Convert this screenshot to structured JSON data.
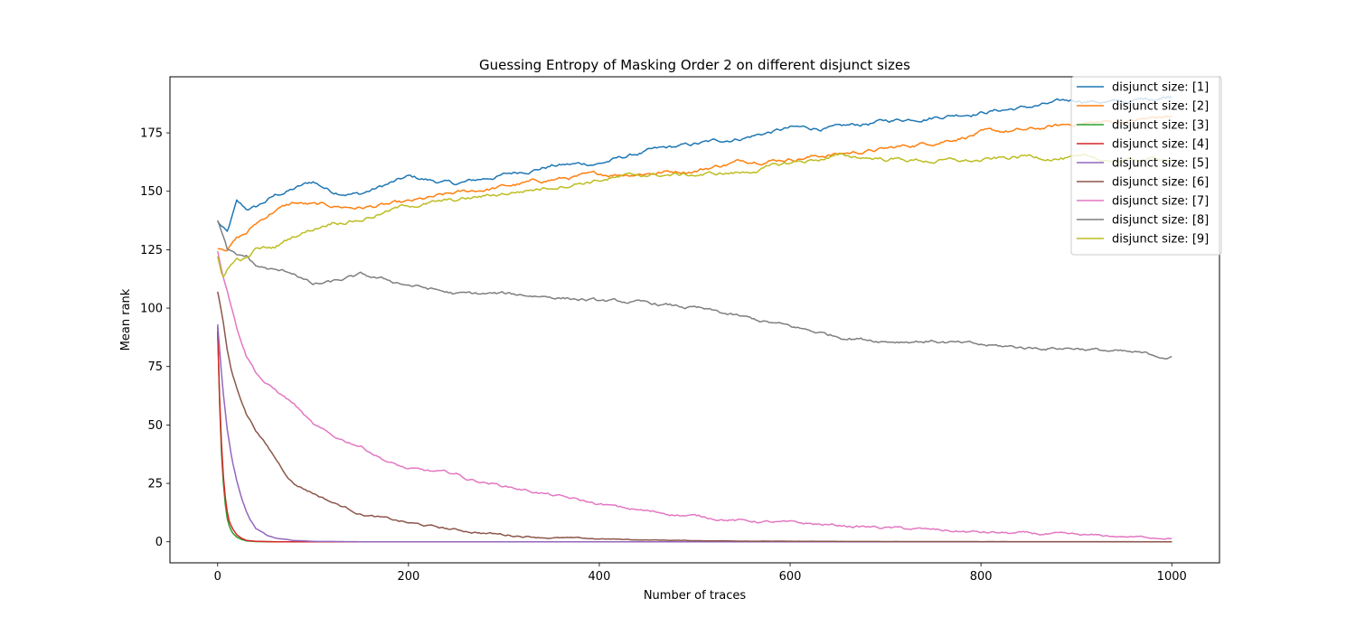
{
  "chart_data": {
    "type": "line",
    "title": "Guessing Entropy of Masking Order 2 on different disjunct sizes",
    "xlabel": "Number of traces",
    "ylabel": "Mean rank",
    "xlim": [
      -50,
      1050
    ],
    "ylim": [
      -9,
      199
    ],
    "x_ticks": [
      0,
      200,
      400,
      600,
      800,
      1000
    ],
    "y_ticks": [
      0,
      25,
      50,
      75,
      100,
      125,
      150,
      175
    ],
    "legend_position": "top-right",
    "grid": false,
    "series": [
      {
        "name": "disjunct size: [1]",
        "color": "#1f77b4",
        "points": [
          [
            0,
            137
          ],
          [
            10,
            132
          ],
          [
            20,
            145
          ],
          [
            30,
            142
          ],
          [
            40,
            143
          ],
          [
            60,
            148
          ],
          [
            80,
            151
          ],
          [
            100,
            154
          ],
          [
            120,
            150
          ],
          [
            150,
            149
          ],
          [
            200,
            156
          ],
          [
            250,
            153
          ],
          [
            300,
            157
          ],
          [
            350,
            161
          ],
          [
            400,
            162
          ],
          [
            450,
            167
          ],
          [
            500,
            170
          ],
          [
            550,
            173
          ],
          [
            600,
            177
          ],
          [
            650,
            177
          ],
          [
            700,
            180
          ],
          [
            750,
            182
          ],
          [
            800,
            184
          ],
          [
            850,
            186
          ],
          [
            900,
            189
          ],
          [
            950,
            188
          ],
          [
            1000,
            191
          ]
        ],
        "noise": 1.2
      },
      {
        "name": "disjunct size: [2]",
        "color": "#ff7f0e",
        "points": [
          [
            0,
            126
          ],
          [
            10,
            126
          ],
          [
            20,
            130
          ],
          [
            30,
            132
          ],
          [
            40,
            136
          ],
          [
            60,
            142
          ],
          [
            80,
            145
          ],
          [
            100,
            144
          ],
          [
            150,
            143
          ],
          [
            200,
            145
          ],
          [
            250,
            149
          ],
          [
            300,
            152
          ],
          [
            350,
            155
          ],
          [
            400,
            157
          ],
          [
            450,
            158
          ],
          [
            500,
            159
          ],
          [
            550,
            163
          ],
          [
            600,
            164
          ],
          [
            650,
            166
          ],
          [
            700,
            168
          ],
          [
            750,
            171
          ],
          [
            800,
            175
          ],
          [
            850,
            176
          ],
          [
            900,
            179
          ],
          [
            950,
            180
          ],
          [
            1000,
            182
          ]
        ],
        "noise": 1.2
      },
      {
        "name": "disjunct size: [3]",
        "color": "#2ca02c",
        "points": [
          [
            0,
            92
          ],
          [
            2,
            60
          ],
          [
            4,
            38
          ],
          [
            6,
            25
          ],
          [
            8,
            16
          ],
          [
            10,
            10
          ],
          [
            12,
            7
          ],
          [
            15,
            4
          ],
          [
            20,
            2
          ],
          [
            25,
            1
          ],
          [
            30,
            0.4
          ],
          [
            40,
            0.1
          ],
          [
            60,
            0
          ],
          [
            1000,
            0
          ]
        ],
        "noise": 0
      },
      {
        "name": "disjunct size: [4]",
        "color": "#d62728",
        "points": [
          [
            0,
            90
          ],
          [
            2,
            62
          ],
          [
            4,
            42
          ],
          [
            6,
            28
          ],
          [
            8,
            19
          ],
          [
            10,
            13
          ],
          [
            12,
            9
          ],
          [
            15,
            6
          ],
          [
            20,
            3
          ],
          [
            25,
            1.5
          ],
          [
            30,
            0.6
          ],
          [
            40,
            0.2
          ],
          [
            60,
            0
          ],
          [
            1000,
            0
          ]
        ],
        "noise": 0
      },
      {
        "name": "disjunct size: [5]",
        "color": "#9467bd",
        "points": [
          [
            0,
            93
          ],
          [
            5,
            67
          ],
          [
            10,
            48
          ],
          [
            15,
            35
          ],
          [
            20,
            26
          ],
          [
            25,
            19
          ],
          [
            30,
            13
          ],
          [
            35,
            9
          ],
          [
            40,
            6
          ],
          [
            50,
            3
          ],
          [
            60,
            1.5
          ],
          [
            80,
            0.6
          ],
          [
            100,
            0.2
          ],
          [
            150,
            0
          ],
          [
            1000,
            0
          ]
        ],
        "noise": 0.5
      },
      {
        "name": "disjunct size: [6]",
        "color": "#8c564b",
        "points": [
          [
            0,
            107
          ],
          [
            5,
            96
          ],
          [
            10,
            82
          ],
          [
            15,
            72
          ],
          [
            20,
            66
          ],
          [
            30,
            55
          ],
          [
            40,
            48
          ],
          [
            50,
            42
          ],
          [
            60,
            36
          ],
          [
            70,
            30
          ],
          [
            80,
            25
          ],
          [
            100,
            21
          ],
          [
            120,
            17
          ],
          [
            150,
            12
          ],
          [
            200,
            8
          ],
          [
            250,
            5
          ],
          [
            300,
            3
          ],
          [
            350,
            1.8
          ],
          [
            400,
            1.2
          ],
          [
            450,
            0.8
          ],
          [
            500,
            0.5
          ],
          [
            600,
            0.2
          ],
          [
            700,
            0.1
          ],
          [
            1000,
            0
          ]
        ],
        "noise": 0.7
      },
      {
        "name": "disjunct size: [7]",
        "color": "#e377c2",
        "points": [
          [
            0,
            124
          ],
          [
            5,
            115
          ],
          [
            10,
            108
          ],
          [
            15,
            100
          ],
          [
            20,
            92
          ],
          [
            25,
            86
          ],
          [
            30,
            80
          ],
          [
            40,
            73
          ],
          [
            50,
            68
          ],
          [
            60,
            65
          ],
          [
            70,
            62
          ],
          [
            80,
            59
          ],
          [
            100,
            50
          ],
          [
            120,
            45
          ],
          [
            150,
            41
          ],
          [
            180,
            34
          ],
          [
            200,
            31
          ],
          [
            250,
            29
          ],
          [
            260,
            27
          ],
          [
            300,
            24
          ],
          [
            350,
            20
          ],
          [
            400,
            16
          ],
          [
            450,
            13
          ],
          [
            500,
            11
          ],
          [
            550,
            9
          ],
          [
            600,
            8
          ],
          [
            650,
            7
          ],
          [
            700,
            6
          ],
          [
            750,
            5
          ],
          [
            800,
            4
          ],
          [
            850,
            3.4
          ],
          [
            900,
            2.7
          ],
          [
            950,
            2.2
          ],
          [
            1000,
            1.6
          ]
        ],
        "noise": 0.8
      },
      {
        "name": "disjunct size: [8]",
        "color": "#7f7f7f",
        "points": [
          [
            0,
            138
          ],
          [
            10,
            125
          ],
          [
            20,
            122
          ],
          [
            30,
            122
          ],
          [
            40,
            118
          ],
          [
            60,
            116
          ],
          [
            80,
            115
          ],
          [
            100,
            110
          ],
          [
            120,
            111
          ],
          [
            150,
            114
          ],
          [
            200,
            110
          ],
          [
            250,
            106
          ],
          [
            300,
            106
          ],
          [
            350,
            105
          ],
          [
            400,
            103
          ],
          [
            450,
            102
          ],
          [
            500,
            100
          ],
          [
            550,
            96
          ],
          [
            600,
            92
          ],
          [
            650,
            88
          ],
          [
            700,
            86
          ],
          [
            750,
            86
          ],
          [
            800,
            84
          ],
          [
            850,
            83
          ],
          [
            900,
            83
          ],
          [
            950,
            81
          ],
          [
            1000,
            79
          ]
        ],
        "noise": 1.0
      },
      {
        "name": "disjunct size: [9]",
        "color": "#bcbd22",
        "points": [
          [
            0,
            122
          ],
          [
            5,
            113
          ],
          [
            10,
            117
          ],
          [
            20,
            121
          ],
          [
            30,
            121
          ],
          [
            40,
            125
          ],
          [
            60,
            126
          ],
          [
            80,
            131
          ],
          [
            100,
            134
          ],
          [
            120,
            137
          ],
          [
            150,
            138
          ],
          [
            200,
            144
          ],
          [
            250,
            146
          ],
          [
            300,
            149
          ],
          [
            350,
            152
          ],
          [
            400,
            155
          ],
          [
            450,
            157
          ],
          [
            500,
            157
          ],
          [
            550,
            158
          ],
          [
            600,
            162
          ],
          [
            650,
            165
          ],
          [
            700,
            164
          ],
          [
            750,
            163
          ],
          [
            800,
            163
          ],
          [
            850,
            165
          ],
          [
            900,
            164
          ],
          [
            950,
            163
          ],
          [
            1000,
            164
          ]
        ],
        "noise": 1.2
      }
    ]
  }
}
